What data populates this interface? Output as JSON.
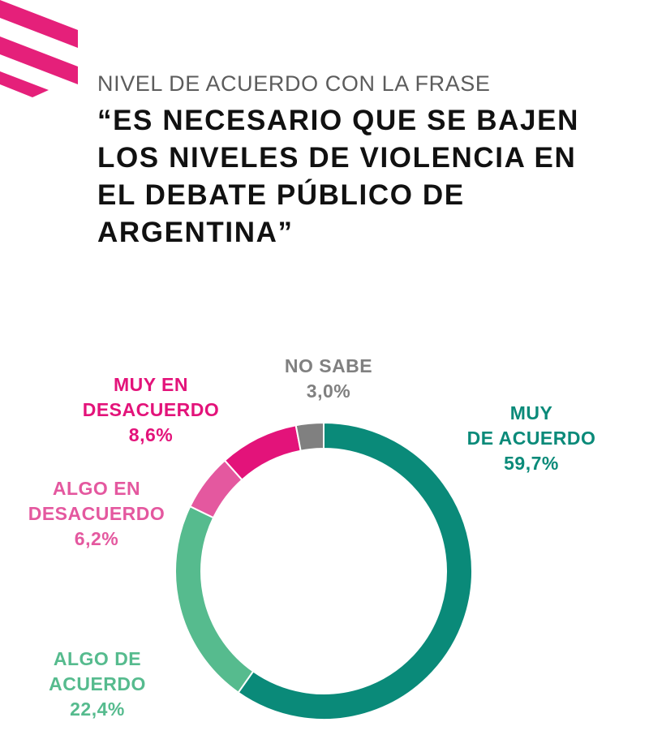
{
  "header": {
    "subtitle": "NIVEL DE ACUERDO CON LA FRASE",
    "title_lines": [
      "“ES NECESARIO QUE SE BAJEN",
      "LOS NIVELES DE VIOLENCIA EN",
      "EL DEBATE PÚBLICO DE",
      "ARGENTINA”"
    ]
  },
  "colors": {
    "brand_pink": "#e5207a",
    "muy_de_acuerdo": "#0a8a79",
    "algo_de_acuerdo": "#56bb8e",
    "algo_en_desacuerdo": "#e4589f",
    "muy_en_desacuerdo": "#e3137a",
    "no_sabe": "#808080"
  },
  "chart_data": {
    "type": "pie",
    "style": "donut",
    "title": "“ES NECESARIO QUE SE BAJEN LOS NIVELES DE VIOLENCIA EN EL DEBATE PÚBLICO DE ARGENTINA”",
    "subtitle": "NIVEL DE ACUERDO CON LA FRASE",
    "slices": [
      {
        "key": "muy_de_acuerdo",
        "label_lines": [
          "MUY",
          "DE ACUERDO"
        ],
        "value": 59.7,
        "value_label": "59,7%",
        "color": "#0a8a79"
      },
      {
        "key": "algo_de_acuerdo",
        "label_lines": [
          "ALGO DE",
          "ACUERDO"
        ],
        "value": 22.4,
        "value_label": "22,4%",
        "color": "#56bb8e"
      },
      {
        "key": "algo_en_desacuerdo",
        "label_lines": [
          "ALGO EN",
          "DESACUERDO"
        ],
        "value": 6.2,
        "value_label": "6,2%",
        "color": "#e4589f"
      },
      {
        "key": "muy_en_desacuerdo",
        "label_lines": [
          "MUY EN",
          "DESACUERDO"
        ],
        "value": 8.6,
        "value_label": "8,6%",
        "color": "#e3137a"
      },
      {
        "key": "no_sabe",
        "label_lines": [
          "NO SABE"
        ],
        "value": 3.0,
        "value_label": "3,0%",
        "color": "#808080"
      }
    ],
    "legend": "none"
  }
}
